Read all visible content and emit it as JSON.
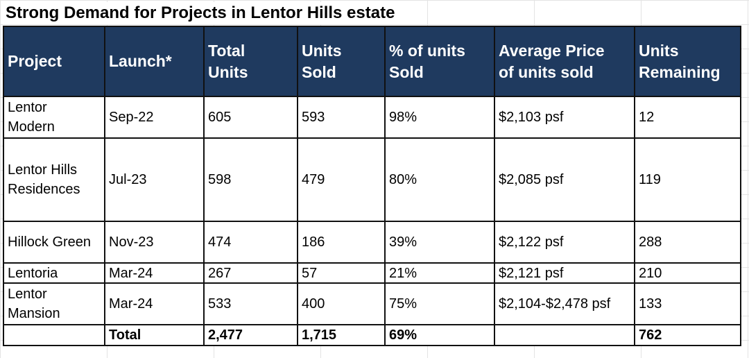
{
  "title": "Strong Demand for Projects in Lentor Hills estate",
  "headers": [
    "Project",
    "Launch*",
    "Total Units",
    "Units Sold",
    "% of units Sold",
    "Average Price of units sold",
    "Units Remaining"
  ],
  "header_lines": [
    [
      "Project"
    ],
    [
      "Launch*"
    ],
    [
      "Total",
      "Units"
    ],
    [
      "Units",
      "Sold"
    ],
    [
      "% of units",
      "Sold"
    ],
    [
      "Average Price",
      "of units sold"
    ],
    [
      "Units",
      "Remaining"
    ]
  ],
  "colors": {
    "header_bg": "#1f3a5f",
    "header_text": "#ffffff",
    "border": "#111111"
  },
  "rows": [
    {
      "project_lines": [
        "Lentor",
        "Modern"
      ],
      "launch": "Sep-22",
      "total_units": "605",
      "units_sold": "593",
      "pct_sold": "98%",
      "avg_price": "$2,103 psf",
      "remaining": "12"
    },
    {
      "project_lines": [
        "Lentor Hills",
        "Residences"
      ],
      "launch": "Jul-23",
      "total_units": "598",
      "units_sold": "479",
      "pct_sold": "80%",
      "avg_price": "$2,085 psf",
      "remaining": "119"
    },
    {
      "project_lines": [
        "Hillock Green"
      ],
      "launch": "Nov-23",
      "total_units": "474",
      "units_sold": "186",
      "pct_sold": "39%",
      "avg_price": "$2,122 psf",
      "remaining": "288"
    },
    {
      "project_lines": [
        "Lentoria"
      ],
      "launch": "Mar-24",
      "total_units": "267",
      "units_sold": "57",
      "pct_sold": "21%",
      "avg_price": "$2,121 psf",
      "remaining": "210"
    },
    {
      "project_lines": [
        "Lentor",
        "Mansion"
      ],
      "launch": "Mar-24",
      "total_units": "533",
      "units_sold": "400",
      "pct_sold": "75%",
      "avg_price": "$2,104-$2,478 psf",
      "remaining": "133"
    }
  ],
  "total": {
    "label": "Total",
    "total_units": "2,477",
    "units_sold": "1,715",
    "pct_sold": "69%",
    "avg_price": "",
    "remaining": "762"
  }
}
